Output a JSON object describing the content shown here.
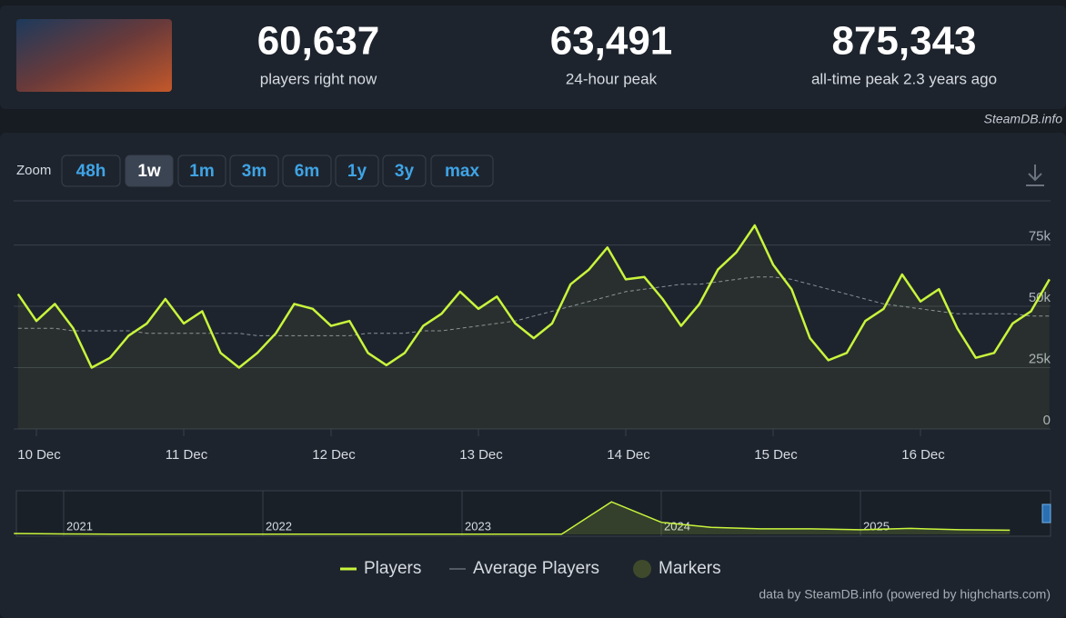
{
  "header": {
    "stats": [
      {
        "value": "60,637",
        "label": "players right now"
      },
      {
        "value": "63,491",
        "label": "24-hour peak"
      },
      {
        "value": "875,343",
        "label": "all-time peak 2.3 years ago"
      }
    ],
    "watermark": "SteamDB.info"
  },
  "zoom": {
    "label": "Zoom",
    "buttons": [
      "48h",
      "1w",
      "1m",
      "3m",
      "6m",
      "1y",
      "3y",
      "max"
    ],
    "active": 1
  },
  "chart_data": {
    "type": "line",
    "categories": [
      null,
      "10 Dec",
      null,
      null,
      null,
      null,
      null,
      null,
      null,
      "11 Dec",
      null,
      null,
      null,
      null,
      null,
      null,
      null,
      "12 Dec",
      null,
      null,
      null,
      null,
      null,
      null,
      null,
      "13 Dec",
      null,
      null,
      null,
      null,
      null,
      null,
      null,
      "14 Dec",
      null,
      null,
      null,
      null,
      null,
      null,
      null,
      "15 Dec",
      null,
      null,
      null,
      null,
      null,
      null,
      null,
      "16 Dec",
      null,
      null,
      null,
      null,
      null,
      null,
      null
    ],
    "series": [
      {
        "name": "Players",
        "color": "#c8f53c",
        "values": [
          55000,
          44000,
          51000,
          41000,
          25000,
          29000,
          38000,
          43000,
          53000,
          43000,
          48000,
          31000,
          25000,
          31000,
          39000,
          51000,
          49000,
          42000,
          44000,
          31000,
          26000,
          31000,
          42000,
          47000,
          56000,
          49000,
          54000,
          43000,
          37000,
          43000,
          59000,
          65000,
          74000,
          61000,
          62000,
          53000,
          42000,
          51000,
          65000,
          72000,
          83000,
          67000,
          57000,
          37000,
          28000,
          31000,
          44000,
          49000,
          63000,
          52000,
          57000,
          41000,
          29000,
          31000,
          43000,
          48000,
          61000
        ]
      },
      {
        "name": "Average Players",
        "color": "#8a9099",
        "dashed": true,
        "values": [
          41000,
          41000,
          41000,
          40000,
          40000,
          40000,
          40000,
          39000,
          39000,
          39000,
          39000,
          39000,
          39000,
          38000,
          38000,
          38000,
          38000,
          38000,
          38000,
          39000,
          39000,
          39000,
          40000,
          40000,
          41000,
          42000,
          43000,
          44000,
          46000,
          48000,
          50000,
          52000,
          54000,
          56000,
          57000,
          58000,
          59000,
          59000,
          60000,
          61000,
          62000,
          62000,
          61000,
          59000,
          57000,
          55000,
          53000,
          51000,
          50000,
          49000,
          48000,
          47000,
          47000,
          47000,
          47000,
          46000,
          46000
        ]
      }
    ],
    "markers": {
      "name": "Markers",
      "color": "#3f4a2c"
    },
    "ylim": [
      0,
      93000
    ],
    "yticks": [
      0,
      {
        "value": 25000,
        "label": "25k"
      },
      {
        "value": 50000,
        "label": "50k"
      },
      {
        "value": 75000,
        "label": "75k"
      }
    ],
    "grid": true,
    "navigator": {
      "categories": [
        null,
        "2021",
        null,
        null,
        null,
        "2022",
        null,
        null,
        null,
        "2023",
        null,
        null,
        null,
        "2024",
        null,
        null,
        null,
        "2025",
        null,
        null,
        null
      ],
      "values": [
        20000,
        10000,
        5000,
        5000,
        5000,
        5000,
        5000,
        5000,
        5000,
        5000,
        5000,
        5000,
        700000,
        260000,
        150000,
        120000,
        120000,
        100000,
        130000,
        100000,
        90000
      ],
      "ylim": [
        0,
        900000
      ]
    },
    "credit": "data by SteamDB.info (powered by highcharts.com)"
  }
}
